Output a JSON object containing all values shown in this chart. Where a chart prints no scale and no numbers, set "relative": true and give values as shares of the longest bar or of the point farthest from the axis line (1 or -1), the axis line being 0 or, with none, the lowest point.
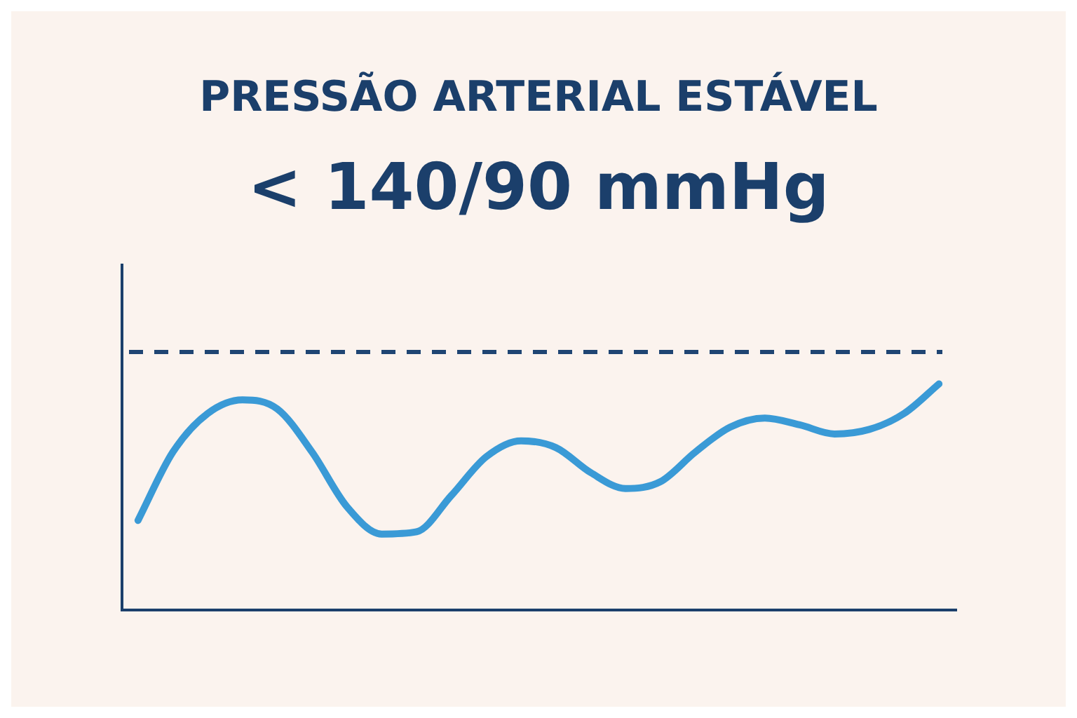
{
  "chart_data": {
    "type": "line",
    "title": "PRESSÃO ARTERIAL ESTÁVEL",
    "subtitle": "< 140/90 mmHg",
    "relative": true,
    "categories": [
      null,
      null,
      null,
      null,
      null,
      null,
      null,
      null,
      null,
      null,
      null,
      null,
      null,
      null,
      null,
      null,
      null,
      null,
      null,
      null,
      null,
      null,
      null,
      null
    ],
    "series": [
      {
        "color": "#3a9ad6",
        "values": [
          0.4,
          0.7,
          0.87,
          0.93,
          0.89,
          0.7,
          0.46,
          0.34,
          0.35,
          0.51,
          0.68,
          0.75,
          0.72,
          0.61,
          0.54,
          0.57,
          0.7,
          0.81,
          0.85,
          0.82,
          0.78,
          0.8,
          0.87,
          1
        ]
      }
    ],
    "ref_lines": [
      {
        "axis": "y",
        "value": 1.14,
        "color": "#1f4573",
        "line_style": "dashed"
      }
    ],
    "grid": false,
    "legend": false,
    "marker": "none",
    "line_style": "solid"
  }
}
